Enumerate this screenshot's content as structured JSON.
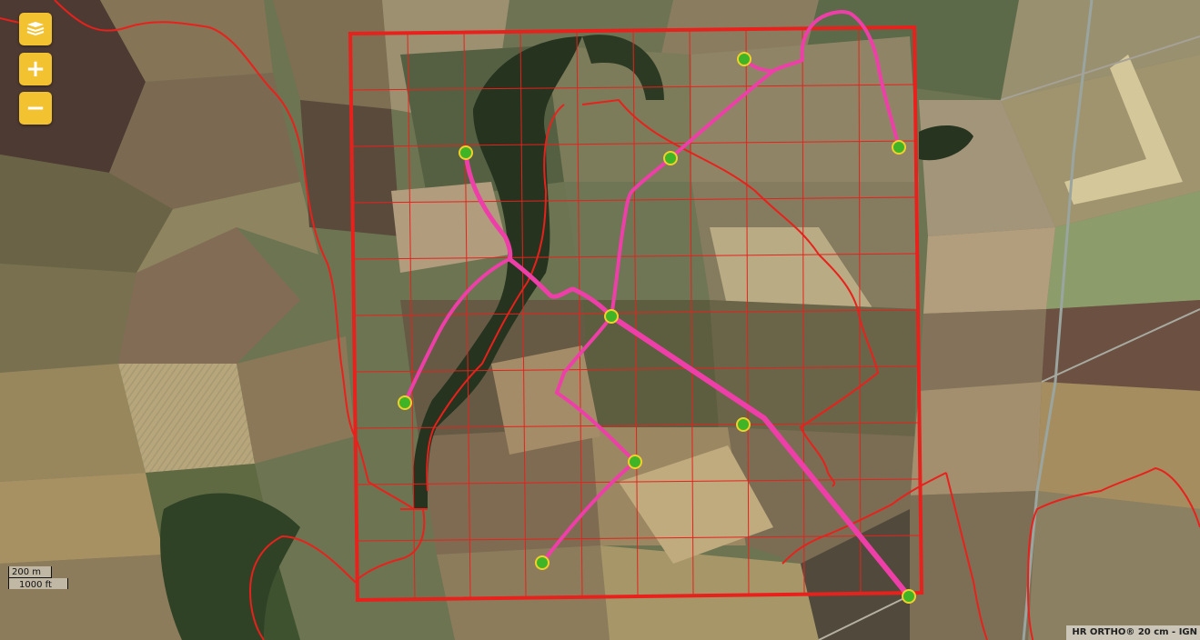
{
  "map": {
    "imagery": "aerial orthophoto",
    "colors": {
      "boundary": "#e8211c",
      "grid": "#e8211c",
      "network": "#ee3fa8",
      "station_fill": "#3fb426",
      "station_ring": "#f2d02a",
      "control_bg": "#f3c230"
    }
  },
  "controls": {
    "layers_icon": "layers-icon",
    "zoom_in": "+",
    "zoom_out": "−"
  },
  "scale": {
    "metric": "200 m",
    "imperial": "1000 ft"
  },
  "attribution": "HR ORTHO® 20 cm - IGN"
}
